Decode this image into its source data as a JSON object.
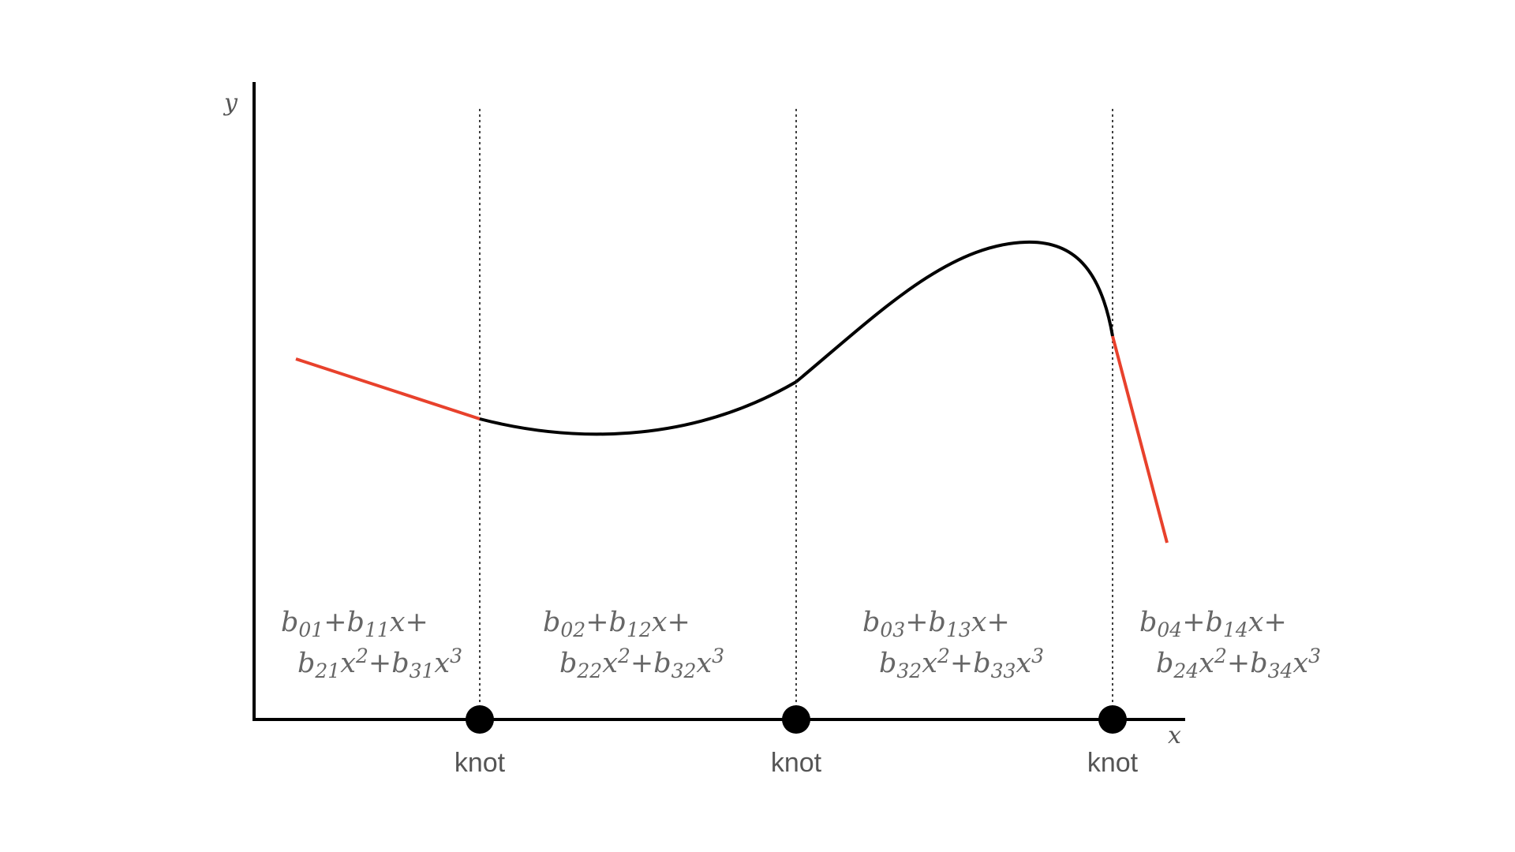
{
  "axes": {
    "x_label": "x",
    "y_label": "y"
  },
  "knots": [
    {
      "label": "knot"
    },
    {
      "label": "knot"
    },
    {
      "label": "knot"
    }
  ],
  "segments": [
    {
      "line1": [
        "b",
        "01",
        "+",
        "b",
        "11",
        "x+"
      ],
      "line2": [
        "b",
        "21",
        "x",
        "2",
        "+",
        "b",
        "31",
        "x",
        "3"
      ]
    },
    {
      "line1": [
        "b",
        "02",
        "+",
        "b",
        "12",
        "x+"
      ],
      "line2": [
        "b",
        "22",
        "x",
        "2",
        "+",
        "b",
        "32",
        "x",
        "3"
      ]
    },
    {
      "line1": [
        "b",
        "03",
        "+",
        "b",
        "13",
        "x+"
      ],
      "line2": [
        "b",
        "32",
        "x",
        "2",
        "+",
        "b",
        "33",
        "x",
        "3"
      ]
    },
    {
      "line1": [
        "b",
        "04",
        "+",
        "b",
        "14",
        "x+"
      ],
      "line2": [
        "b",
        "24",
        "x",
        "2",
        "+",
        "b",
        "34",
        "x",
        "3"
      ]
    }
  ],
  "colors": {
    "boundary_linear": "#e8412c",
    "interior_cubic": "#000000",
    "axis": "#000000",
    "knot_marker": "#000000",
    "guide_line": "#000000",
    "text": "#555555"
  }
}
